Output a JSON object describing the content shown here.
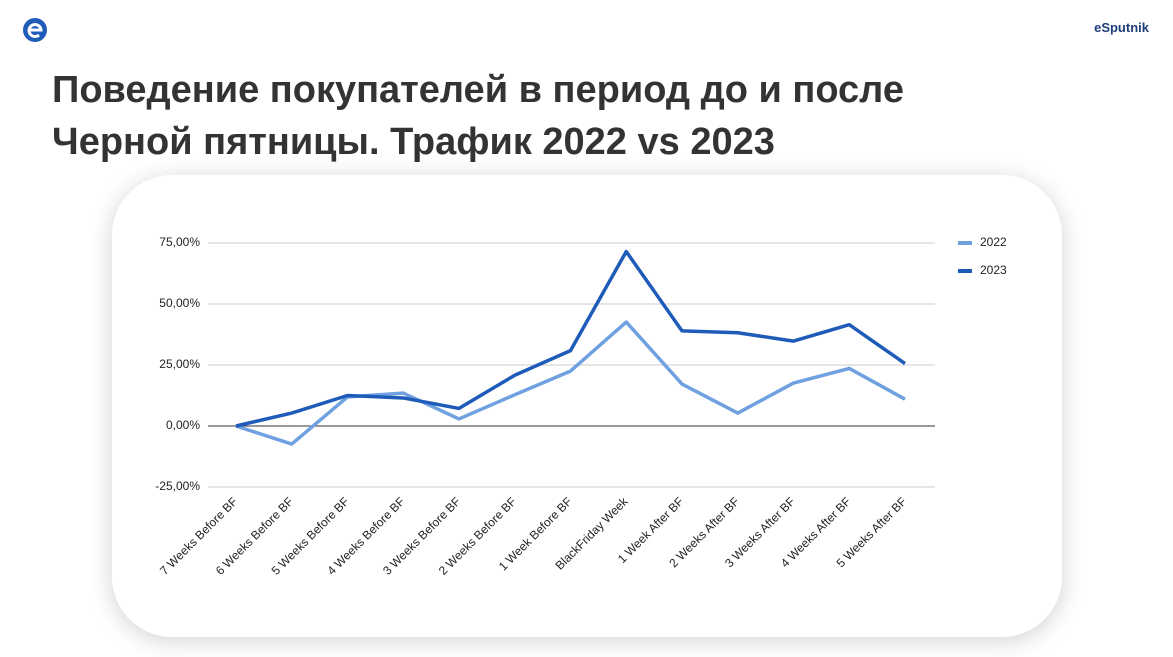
{
  "brand": "eSputnik",
  "chart_data": {
    "type": "line",
    "title": "Поведение покупателей в период до и после Черной пятницы. Трафик 2022 vs 2023",
    "categories": [
      "7 Weeks Before BF",
      "6 Weeks Before BF",
      "5 Weeks Before BF",
      "4 Weeks Before BF",
      "3 Weeks Before BF",
      "2 Weeks Before BF",
      "1 Week Before BF",
      "BlackFriday Week",
      "1 Week After BF",
      "2 Weeks After BF",
      "3 Weeks After BF",
      "4 Weeks After BF",
      "5 Weeks After BF"
    ],
    "series": [
      {
        "name": "2022",
        "color": "#6fa0e0",
        "values": [
          0,
          -7.4,
          11.9,
          13.5,
          2.9,
          12.8,
          22.5,
          42.6,
          17.2,
          5.3,
          17.6,
          23.6,
          11
        ]
      },
      {
        "name": "2023",
        "color": "#1f5bb8",
        "values": [
          0,
          5.3,
          12.5,
          11.5,
          7.2,
          20.8,
          30.9,
          71.5,
          39,
          38.2,
          34.8,
          41.5,
          25.6
        ]
      }
    ],
    "ylim": [
      -25,
      75
    ],
    "yticks": [
      {
        "value": -25,
        "label": "-25,00%"
      },
      {
        "value": 0,
        "label": "0,00%"
      },
      {
        "value": 25,
        "label": "25,00%"
      },
      {
        "value": 50,
        "label": "50,00%"
      },
      {
        "value": 75,
        "label": "75,00%"
      }
    ],
    "grid": true,
    "legend": "right"
  }
}
